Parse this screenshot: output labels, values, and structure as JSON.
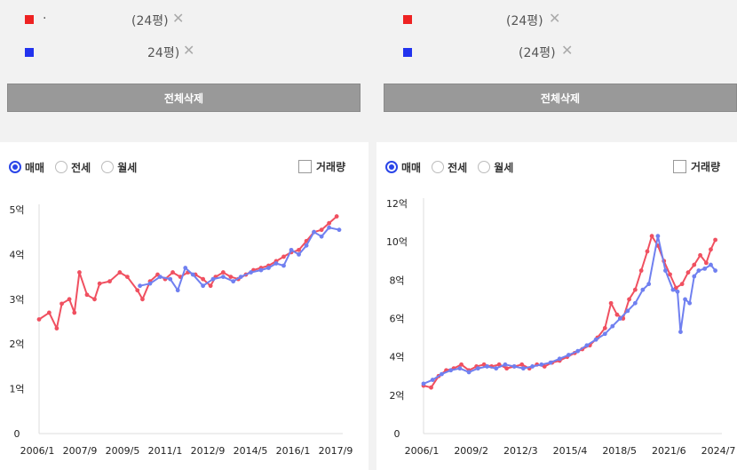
{
  "left": {
    "items": [
      {
        "label": "·",
        "size": "(24평)",
        "color": "#ee2222"
      },
      {
        "label": "",
        "size": "24평)",
        "color": "#2233ee"
      }
    ],
    "delete_all_label": "전체삭제",
    "radios": [
      {
        "label": "매매",
        "selected": true
      },
      {
        "label": "전세",
        "selected": false
      },
      {
        "label": "월세",
        "selected": false
      }
    ],
    "volume_label": "거래량",
    "chart_data": {
      "type": "line",
      "ylim": [
        0,
        5
      ],
      "yticks": [
        "0",
        "1억",
        "2억",
        "3억",
        "4억",
        "5억"
      ],
      "xticks": [
        "2006/1",
        "2007/9",
        "2009/5",
        "2011/1",
        "2012/9",
        "2014/5",
        "2016/1",
        "2017/9"
      ],
      "series": [
        {
          "color": "#f05060",
          "points": [
            [
              2006.0,
              2.55
            ],
            [
              2006.4,
              2.7
            ],
            [
              2006.7,
              2.35
            ],
            [
              2006.9,
              2.9
            ],
            [
              2007.2,
              3.0
            ],
            [
              2007.4,
              2.7
            ],
            [
              2007.6,
              3.6
            ],
            [
              2007.9,
              3.1
            ],
            [
              2008.2,
              3.0
            ],
            [
              2008.4,
              3.35
            ],
            [
              2008.8,
              3.4
            ],
            [
              2009.2,
              3.6
            ],
            [
              2009.5,
              3.5
            ],
            [
              2009.9,
              3.2
            ],
            [
              2010.1,
              3.0
            ],
            [
              2010.4,
              3.4
            ],
            [
              2010.7,
              3.55
            ],
            [
              2011.0,
              3.45
            ],
            [
              2011.3,
              3.6
            ],
            [
              2011.6,
              3.5
            ],
            [
              2011.9,
              3.6
            ],
            [
              2012.2,
              3.55
            ],
            [
              2012.5,
              3.45
            ],
            [
              2012.8,
              3.3
            ],
            [
              2013.0,
              3.5
            ],
            [
              2013.3,
              3.6
            ],
            [
              2013.6,
              3.5
            ],
            [
              2013.9,
              3.45
            ],
            [
              2014.2,
              3.55
            ],
            [
              2014.5,
              3.65
            ],
            [
              2014.8,
              3.7
            ],
            [
              2015.1,
              3.75
            ],
            [
              2015.4,
              3.85
            ],
            [
              2015.7,
              3.95
            ],
            [
              2016.0,
              4.05
            ],
            [
              2016.3,
              4.1
            ],
            [
              2016.6,
              4.3
            ],
            [
              2016.9,
              4.5
            ],
            [
              2017.2,
              4.55
            ],
            [
              2017.5,
              4.7
            ],
            [
              2017.8,
              4.85
            ]
          ]
        },
        {
          "color": "#7080f0",
          "points": [
            [
              2010.0,
              3.3
            ],
            [
              2010.4,
              3.35
            ],
            [
              2010.8,
              3.5
            ],
            [
              2011.2,
              3.45
            ],
            [
              2011.5,
              3.2
            ],
            [
              2011.8,
              3.7
            ],
            [
              2012.1,
              3.55
            ],
            [
              2012.5,
              3.3
            ],
            [
              2012.9,
              3.45
            ],
            [
              2013.3,
              3.5
            ],
            [
              2013.7,
              3.4
            ],
            [
              2014.0,
              3.5
            ],
            [
              2014.4,
              3.6
            ],
            [
              2014.8,
              3.65
            ],
            [
              2015.1,
              3.7
            ],
            [
              2015.4,
              3.8
            ],
            [
              2015.7,
              3.75
            ],
            [
              2016.0,
              4.1
            ],
            [
              2016.3,
              4.0
            ],
            [
              2016.6,
              4.2
            ],
            [
              2016.9,
              4.5
            ],
            [
              2017.2,
              4.4
            ],
            [
              2017.5,
              4.6
            ],
            [
              2017.9,
              4.55
            ]
          ]
        }
      ]
    }
  },
  "right": {
    "items": [
      {
        "label": "",
        "size": "(24평)",
        "color": "#ee2222"
      },
      {
        "label": "",
        "size": "(24평)",
        "color": "#2233ee"
      }
    ],
    "delete_all_label": "전체삭제",
    "radios": [
      {
        "label": "매매",
        "selected": true
      },
      {
        "label": "전세",
        "selected": false
      },
      {
        "label": "월세",
        "selected": false
      }
    ],
    "volume_label": "거래량",
    "chart_data": {
      "type": "line",
      "ylim": [
        0,
        12
      ],
      "yticks": [
        "0",
        "2억",
        "4억",
        "6억",
        "8억",
        "10억",
        "12억"
      ],
      "xticks": [
        "2006/1",
        "2009/2",
        "2012/3",
        "2015/4",
        "2018/5",
        "2021/6",
        "2024/7"
      ],
      "series": [
        {
          "color": "#f05060",
          "points": [
            [
              2006.0,
              2.5
            ],
            [
              2006.5,
              2.4
            ],
            [
              2007.0,
              3.0
            ],
            [
              2007.5,
              3.3
            ],
            [
              2008.0,
              3.4
            ],
            [
              2008.5,
              3.6
            ],
            [
              2009.0,
              3.3
            ],
            [
              2009.5,
              3.5
            ],
            [
              2010.0,
              3.6
            ],
            [
              2010.5,
              3.5
            ],
            [
              2011.0,
              3.6
            ],
            [
              2011.5,
              3.4
            ],
            [
              2012.0,
              3.5
            ],
            [
              2012.5,
              3.6
            ],
            [
              2013.0,
              3.4
            ],
            [
              2013.5,
              3.6
            ],
            [
              2014.0,
              3.5
            ],
            [
              2014.5,
              3.7
            ],
            [
              2015.0,
              3.8
            ],
            [
              2015.5,
              4.0
            ],
            [
              2016.0,
              4.2
            ],
            [
              2016.5,
              4.4
            ],
            [
              2017.0,
              4.6
            ],
            [
              2017.5,
              5.0
            ],
            [
              2018.0,
              5.5
            ],
            [
              2018.4,
              6.8
            ],
            [
              2018.8,
              6.2
            ],
            [
              2019.2,
              6.0
            ],
            [
              2019.6,
              7.0
            ],
            [
              2020.0,
              7.5
            ],
            [
              2020.4,
              8.5
            ],
            [
              2020.8,
              9.5
            ],
            [
              2021.1,
              10.3
            ],
            [
              2021.5,
              9.8
            ],
            [
              2021.9,
              9.0
            ],
            [
              2022.3,
              8.3
            ],
            [
              2022.7,
              7.6
            ],
            [
              2023.1,
              7.8
            ],
            [
              2023.5,
              8.4
            ],
            [
              2023.9,
              8.8
            ],
            [
              2024.3,
              9.3
            ],
            [
              2024.7,
              8.9
            ],
            [
              2025.0,
              9.6
            ],
            [
              2025.3,
              10.1
            ]
          ]
        },
        {
          "color": "#7080f0",
          "points": [
            [
              2006.0,
              2.6
            ],
            [
              2006.6,
              2.8
            ],
            [
              2007.2,
              3.1
            ],
            [
              2007.8,
              3.3
            ],
            [
              2008.4,
              3.4
            ],
            [
              2009.0,
              3.2
            ],
            [
              2009.6,
              3.4
            ],
            [
              2010.2,
              3.5
            ],
            [
              2010.8,
              3.4
            ],
            [
              2011.4,
              3.6
            ],
            [
              2012.0,
              3.5
            ],
            [
              2012.6,
              3.4
            ],
            [
              2013.2,
              3.5
            ],
            [
              2013.8,
              3.6
            ],
            [
              2014.4,
              3.7
            ],
            [
              2015.0,
              3.9
            ],
            [
              2015.6,
              4.1
            ],
            [
              2016.2,
              4.3
            ],
            [
              2016.8,
              4.6
            ],
            [
              2017.4,
              4.9
            ],
            [
              2018.0,
              5.2
            ],
            [
              2018.5,
              5.6
            ],
            [
              2019.0,
              6.0
            ],
            [
              2019.5,
              6.4
            ],
            [
              2020.0,
              6.8
            ],
            [
              2020.5,
              7.5
            ],
            [
              2020.9,
              7.8
            ],
            [
              2021.5,
              10.3
            ],
            [
              2022.0,
              8.5
            ],
            [
              2022.5,
              7.5
            ],
            [
              2022.8,
              7.4
            ],
            [
              2023.0,
              5.3
            ],
            [
              2023.3,
              7.0
            ],
            [
              2023.6,
              6.8
            ],
            [
              2023.9,
              8.2
            ],
            [
              2024.2,
              8.5
            ],
            [
              2024.6,
              8.6
            ],
            [
              2025.0,
              8.8
            ],
            [
              2025.3,
              8.5
            ]
          ]
        }
      ]
    }
  }
}
